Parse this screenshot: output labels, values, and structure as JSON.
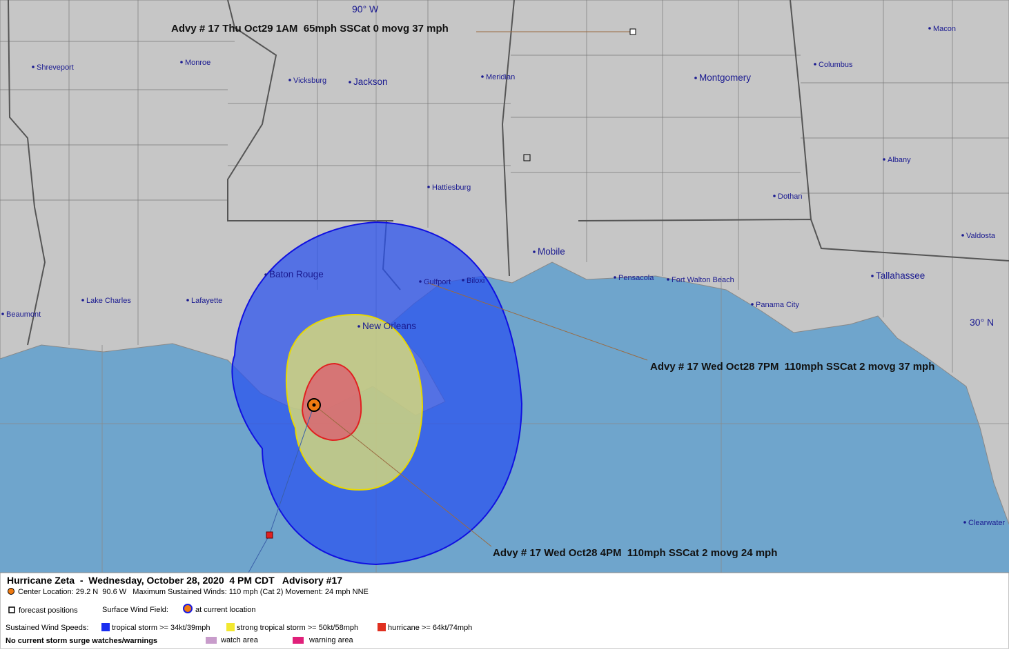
{
  "map": {
    "graticule": [
      "90° W",
      "30° N"
    ],
    "cities": [
      "Shreveport",
      "Monroe",
      "Vicksburg",
      "Jackson",
      "Meridian",
      "Montgomery",
      "Macon",
      "Columbus",
      "Albany",
      "Hattiesburg",
      "Dothan",
      "Valdosta",
      "Mobile",
      "Tallahassee",
      "Baton Rouge",
      "Gulfport",
      "Biloxi",
      "Pensacola",
      "Fort Walton Beach",
      "Panama City",
      "Lake Charles",
      "Lafayette",
      "Beaumont",
      "New Orleans",
      "Clearwater"
    ],
    "annotations": [
      "Advy # 17 Thu Oct29 1AM  65mph SSCat 0 movg 37 mph",
      "Advy # 17 Wed Oct28 7PM  110mph SSCat 2 movg 37 mph",
      "Advy # 17 Wed Oct28 4PM  110mph SSCat 2 movg 24 mph"
    ]
  },
  "footer": {
    "title": "Hurricane Zeta  -  Wednesday, October 28, 2020  4 PM CDT   Advisory #17",
    "center_info": "Center Location: 29.2 N  90.6 W   Maximum Sustained Winds: 110 mph (Cat 2) Movement: 24 mph NNE",
    "forecast_positions": "forecast positions",
    "wind_field_label": "Surface Wind Field:",
    "current_location": "at current location",
    "wind_speeds_label": "Sustained Wind Speeds:",
    "tropical_storm": "tropical storm >= 34kt/39mph",
    "strong_tropical_storm": "strong tropical storm >= 50kt/58mph",
    "hurricane": "hurricane >= 64kt/74mph",
    "surge_note": "No current storm surge watches/warnings",
    "watch_area": "watch area",
    "warning_area": "warning area"
  }
}
